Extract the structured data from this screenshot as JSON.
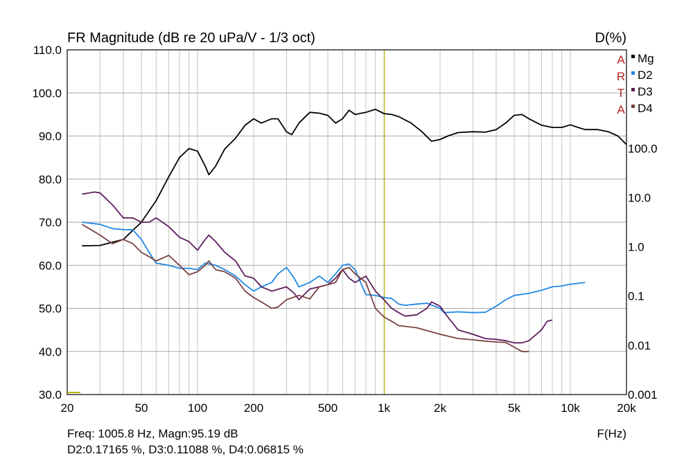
{
  "chart_data": {
    "type": "line",
    "title": "FR Magnitude (dB re 20 uPa/V - 1/3 oct)",
    "right_title": "D(%)",
    "xlabel": "F(Hz)",
    "x_scale": "log",
    "xlim": [
      20,
      20000
    ],
    "ylim_left": [
      30,
      110
    ],
    "ylim_right": [
      0.001,
      10000
    ],
    "y_scale_right": "log",
    "grid": true,
    "legend_position": "top-right",
    "brand_letters": [
      "A",
      "R",
      "T",
      "A"
    ],
    "x_ticks": [
      {
        "value": 20,
        "label": "20"
      },
      {
        "value": 50,
        "label": "50"
      },
      {
        "value": 100,
        "label": "100"
      },
      {
        "value": 200,
        "label": "200"
      },
      {
        "value": 500,
        "label": "500"
      },
      {
        "value": 1000,
        "label": "1k"
      },
      {
        "value": 2000,
        "label": "2k"
      },
      {
        "value": 5000,
        "label": "5k"
      },
      {
        "value": 10000,
        "label": "10k"
      },
      {
        "value": 20000,
        "label": "20k"
      }
    ],
    "y_ticks_left": [
      {
        "value": 110,
        "label": "110.0"
      },
      {
        "value": 100,
        "label": "100.0"
      },
      {
        "value": 90,
        "label": "90.0"
      },
      {
        "value": 80,
        "label": "80.0"
      },
      {
        "value": 70,
        "label": "70.0"
      },
      {
        "value": 60,
        "label": "60.0"
      },
      {
        "value": 50,
        "label": "50.0"
      },
      {
        "value": 40,
        "label": "40.0"
      },
      {
        "value": 30,
        "label": "30.0"
      }
    ],
    "y_ticks_right": [
      {
        "value": 100,
        "label": "100.0"
      },
      {
        "value": 10,
        "label": "10.0"
      },
      {
        "value": 1,
        "label": "1.0"
      },
      {
        "value": 0.1,
        "label": "0.1"
      },
      {
        "value": 0.01,
        "label": "0.01"
      },
      {
        "value": 0.001,
        "label": "0.001"
      }
    ],
    "cursor_x": 1005.8,
    "series": [
      {
        "name": "Mg",
        "color": "#000000",
        "points": [
          [
            24,
            64.5
          ],
          [
            30,
            64.6
          ],
          [
            40,
            66
          ],
          [
            50,
            70
          ],
          [
            60,
            75
          ],
          [
            70,
            80.5
          ],
          [
            80,
            85
          ],
          [
            90,
            87.1
          ],
          [
            100,
            86.5
          ],
          [
            110,
            83
          ],
          [
            115,
            81
          ],
          [
            125,
            83
          ],
          [
            140,
            87
          ],
          [
            160,
            89.5
          ],
          [
            180,
            92.5
          ],
          [
            200,
            94
          ],
          [
            220,
            93
          ],
          [
            250,
            94
          ],
          [
            270,
            94
          ],
          [
            300,
            91
          ],
          [
            320,
            90.3
          ],
          [
            350,
            93
          ],
          [
            400,
            95.5
          ],
          [
            450,
            95.3
          ],
          [
            500,
            94.8
          ],
          [
            550,
            93
          ],
          [
            600,
            94
          ],
          [
            650,
            96
          ],
          [
            700,
            95
          ],
          [
            800,
            95.5
          ],
          [
            900,
            96.2
          ],
          [
            1000,
            95.2
          ],
          [
            1100,
            95
          ],
          [
            1200,
            94.5
          ],
          [
            1400,
            93
          ],
          [
            1600,
            91
          ],
          [
            1800,
            88.8
          ],
          [
            2000,
            89.2
          ],
          [
            2200,
            90
          ],
          [
            2500,
            90.8
          ],
          [
            3000,
            91
          ],
          [
            3500,
            90.9
          ],
          [
            4000,
            91.5
          ],
          [
            4500,
            93
          ],
          [
            5000,
            94.8
          ],
          [
            5500,
            95
          ],
          [
            6000,
            94
          ],
          [
            7000,
            92.5
          ],
          [
            8000,
            92
          ],
          [
            9000,
            92
          ],
          [
            10000,
            92.6
          ],
          [
            11000,
            92
          ],
          [
            12000,
            91.5
          ],
          [
            14000,
            91.5
          ],
          [
            16000,
            91
          ],
          [
            18000,
            90
          ],
          [
            20000,
            88
          ]
        ]
      },
      {
        "name": "D2",
        "color": "#1e88e5",
        "points": [
          [
            24,
            70
          ],
          [
            30,
            69.5
          ],
          [
            35,
            68.5
          ],
          [
            40,
            68.3
          ],
          [
            45,
            68.2
          ],
          [
            50,
            66
          ],
          [
            55,
            63
          ],
          [
            60,
            60.5
          ],
          [
            70,
            60
          ],
          [
            80,
            59.3
          ],
          [
            90,
            59.3
          ],
          [
            100,
            59
          ],
          [
            110,
            60.5
          ],
          [
            125,
            60
          ],
          [
            140,
            59
          ],
          [
            160,
            57.5
          ],
          [
            180,
            55.5
          ],
          [
            200,
            54
          ],
          [
            220,
            55
          ],
          [
            250,
            56
          ],
          [
            270,
            58
          ],
          [
            300,
            59.5
          ],
          [
            330,
            57
          ],
          [
            350,
            55
          ],
          [
            400,
            56
          ],
          [
            450,
            57.5
          ],
          [
            500,
            56
          ],
          [
            550,
            58
          ],
          [
            600,
            60
          ],
          [
            650,
            60.3
          ],
          [
            700,
            59
          ],
          [
            750,
            56
          ],
          [
            800,
            53.2
          ],
          [
            900,
            53
          ],
          [
            1000,
            52.5
          ],
          [
            1100,
            52.3
          ],
          [
            1200,
            51
          ],
          [
            1300,
            50.7
          ],
          [
            1500,
            51
          ],
          [
            1700,
            51.2
          ],
          [
            2000,
            50
          ],
          [
            2100,
            49
          ],
          [
            2500,
            49.2
          ],
          [
            3000,
            49
          ],
          [
            3500,
            49.1
          ],
          [
            4000,
            50.5
          ],
          [
            4500,
            52
          ],
          [
            5000,
            53
          ],
          [
            6000,
            53.5
          ],
          [
            7000,
            54.2
          ],
          [
            8000,
            55
          ],
          [
            9000,
            55.2
          ],
          [
            10000,
            55.6
          ],
          [
            12000,
            56
          ]
        ]
      },
      {
        "name": "D3",
        "color": "#5c1e5c",
        "points": [
          [
            24,
            76.5
          ],
          [
            28,
            77
          ],
          [
            30,
            76.8
          ],
          [
            35,
            74
          ],
          [
            40,
            71
          ],
          [
            45,
            71
          ],
          [
            50,
            70
          ],
          [
            55,
            70
          ],
          [
            60,
            71
          ],
          [
            70,
            69
          ],
          [
            80,
            66.5
          ],
          [
            90,
            65.5
          ],
          [
            100,
            63.5
          ],
          [
            110,
            66
          ],
          [
            115,
            67
          ],
          [
            125,
            65.5
          ],
          [
            140,
            63
          ],
          [
            160,
            61
          ],
          [
            180,
            57.5
          ],
          [
            200,
            57
          ],
          [
            220,
            55
          ],
          [
            250,
            54
          ],
          [
            300,
            55
          ],
          [
            330,
            53.5
          ],
          [
            350,
            52
          ],
          [
            400,
            54.5
          ],
          [
            450,
            55
          ],
          [
            500,
            55.5
          ],
          [
            550,
            57
          ],
          [
            600,
            59
          ],
          [
            650,
            57
          ],
          [
            700,
            56
          ],
          [
            800,
            57.5
          ],
          [
            900,
            54
          ],
          [
            1000,
            52
          ],
          [
            1100,
            50
          ],
          [
            1200,
            49
          ],
          [
            1300,
            48.2
          ],
          [
            1500,
            48.5
          ],
          [
            1700,
            50
          ],
          [
            1800,
            51.5
          ],
          [
            2000,
            50.5
          ],
          [
            2200,
            48
          ],
          [
            2500,
            45
          ],
          [
            3000,
            44
          ],
          [
            3500,
            43
          ],
          [
            4000,
            42.8
          ],
          [
            4500,
            42.5
          ],
          [
            5000,
            42
          ],
          [
            5500,
            42
          ],
          [
            6000,
            42.5
          ],
          [
            7000,
            45
          ],
          [
            7500,
            47
          ],
          [
            8000,
            47.3
          ]
        ]
      },
      {
        "name": "D4",
        "color": "#7a4040",
        "points": [
          [
            24,
            69.5
          ],
          [
            30,
            67
          ],
          [
            35,
            65
          ],
          [
            40,
            66
          ],
          [
            45,
            65
          ],
          [
            50,
            63
          ],
          [
            55,
            62
          ],
          [
            60,
            61
          ],
          [
            70,
            62.3
          ],
          [
            80,
            60
          ],
          [
            90,
            57.8
          ],
          [
            100,
            58.5
          ],
          [
            110,
            60
          ],
          [
            115,
            61
          ],
          [
            125,
            59
          ],
          [
            140,
            58.5
          ],
          [
            160,
            57
          ],
          [
            180,
            54
          ],
          [
            200,
            52.5
          ],
          [
            220,
            51.5
          ],
          [
            250,
            50
          ],
          [
            270,
            50.3
          ],
          [
            300,
            52
          ],
          [
            350,
            53
          ],
          [
            400,
            52.2
          ],
          [
            450,
            55
          ],
          [
            500,
            55.5
          ],
          [
            550,
            56
          ],
          [
            600,
            59
          ],
          [
            650,
            59.5
          ],
          [
            700,
            58
          ],
          [
            800,
            56
          ],
          [
            900,
            50
          ],
          [
            1000,
            48
          ],
          [
            1100,
            47
          ],
          [
            1200,
            46
          ],
          [
            1500,
            45.5
          ],
          [
            2000,
            44
          ],
          [
            2500,
            43
          ],
          [
            3000,
            42.7
          ],
          [
            3500,
            42.4
          ],
          [
            4000,
            42.2
          ],
          [
            4500,
            42.1
          ],
          [
            5000,
            41
          ],
          [
            5500,
            40
          ],
          [
            6000,
            40
          ]
        ]
      }
    ]
  },
  "readout": {
    "line1": "Freq: 1005.8 Hz, Magn:95.19 dB",
    "line2": "D2:0.17165 %, D3:0.11088 %, D4:0.06815 %"
  }
}
